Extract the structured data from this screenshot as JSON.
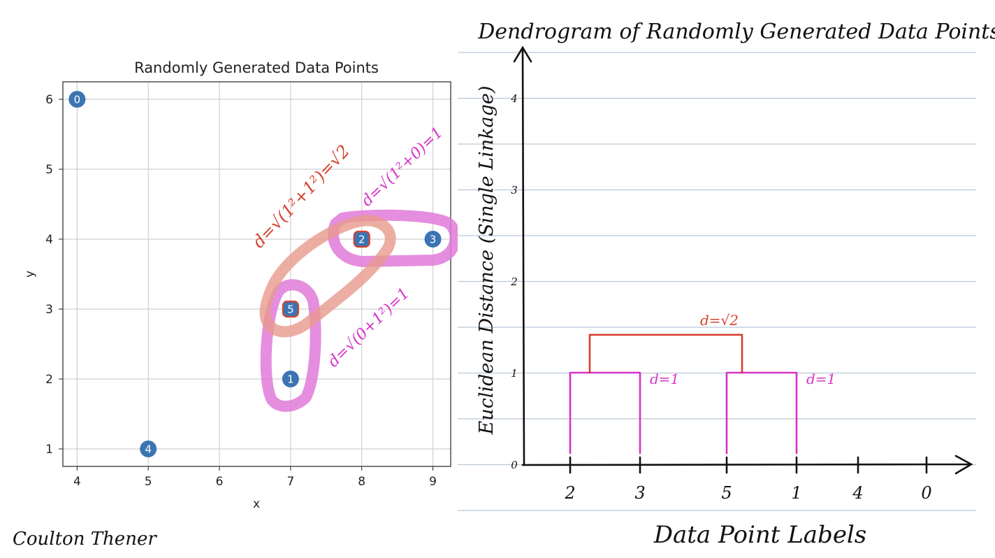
{
  "chart_data": [
    {
      "type": "scatter",
      "title": "Randomly Generated Data Points",
      "xlabel": "x",
      "ylabel": "y",
      "xlim": [
        3.8,
        9.25
      ],
      "ylim": [
        0.75,
        6.25
      ],
      "xticks": [
        4,
        5,
        6,
        7,
        8,
        9
      ],
      "yticks": [
        1,
        2,
        3,
        4,
        5,
        6
      ],
      "grid": true,
      "point_color": "#3b74b2",
      "points": [
        {
          "label": "0",
          "x": 4,
          "y": 6
        },
        {
          "label": "1",
          "x": 7,
          "y": 2
        },
        {
          "label": "2",
          "x": 8,
          "y": 4
        },
        {
          "label": "3",
          "x": 9,
          "y": 4
        },
        {
          "label": "4",
          "x": 5,
          "y": 1
        },
        {
          "label": "5",
          "x": 7,
          "y": 3
        }
      ],
      "annotations": [
        {
          "text": "d=√(1²+1²)=√2",
          "color": "#d6412f"
        },
        {
          "text": "d=√(1²+0)=1",
          "color": "#d633c8"
        },
        {
          "text": "d=√(0+1²)=1",
          "color": "#d633c8"
        }
      ]
    },
    {
      "type": "dendrogram",
      "title": "Dendrogram of Randomly Generated Data Points",
      "xlabel": "Data Point Labels",
      "ylabel": "Euclidean Distance (Single Linkage)",
      "ylim": [
        0,
        4.5
      ],
      "yticks": [
        0,
        1,
        2,
        3,
        4
      ],
      "leaf_order": [
        "2",
        "3",
        "5",
        "1",
        "4",
        "0"
      ],
      "merges": [
        {
          "left": "2",
          "right": "3",
          "height": 1,
          "label": "d=1",
          "color": "#d633c8"
        },
        {
          "left": "5",
          "right": "1",
          "height": 1,
          "label": "d=1",
          "color": "#d633c8"
        },
        {
          "left": "2-3",
          "right": "5-1",
          "height": 1.414,
          "label": "d=√2",
          "color": "#d6412f"
        }
      ]
    }
  ],
  "author": "Coulton Thener"
}
